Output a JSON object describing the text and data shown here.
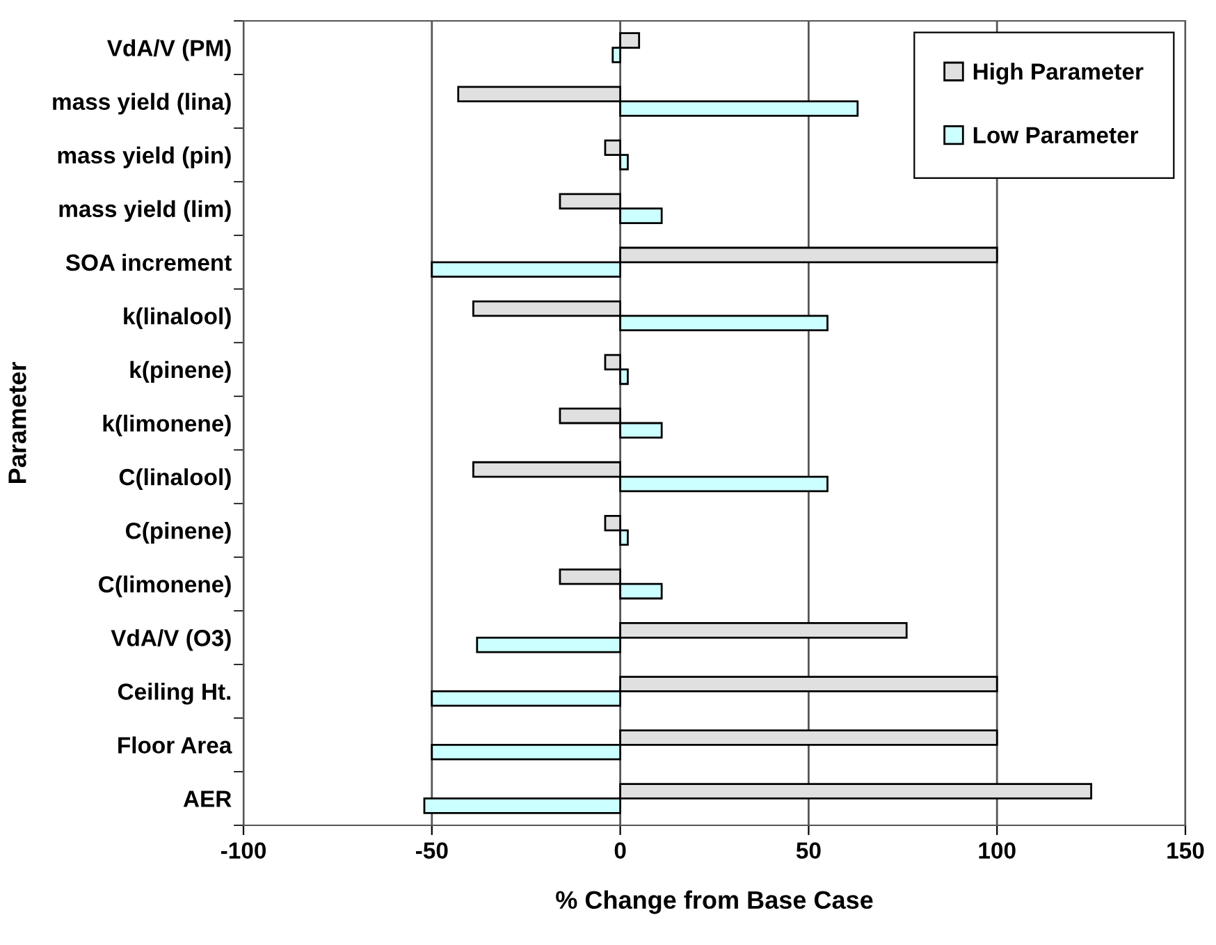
{
  "chart_data": {
    "type": "bar",
    "orientation": "horizontal",
    "xlabel": "% Change from Base Case",
    "ylabel": "Parameter",
    "categories": [
      "VdA/V (PM)",
      "mass yield (lina)",
      "mass yield (pin)",
      "mass yield (lim)",
      "SOA increment",
      "k(linalool)",
      "k(pinene)",
      "k(limonene)",
      "C(linalool)",
      "C(pinene)",
      "C(limonene)",
      "VdA/V (O3)",
      "Ceiling Ht.",
      "Floor Area",
      "AER"
    ],
    "series": [
      {
        "name": "High Parameter",
        "color": "#e0e0e0",
        "values": [
          5,
          -43,
          -4,
          -16,
          100,
          -39,
          -4,
          -16,
          -39,
          -4,
          -16,
          76,
          100,
          100,
          125
        ]
      },
      {
        "name": "Low Parameter",
        "color": "#ccffff",
        "values": [
          -2,
          63,
          2,
          11,
          -50,
          55,
          2,
          11,
          55,
          2,
          11,
          -38,
          -50,
          -50,
          -52
        ]
      }
    ],
    "xlim": [
      -100,
      150
    ],
    "xticks": [
      -100,
      -50,
      0,
      50,
      100,
      150
    ],
    "grid": "x",
    "legend": "top right"
  }
}
